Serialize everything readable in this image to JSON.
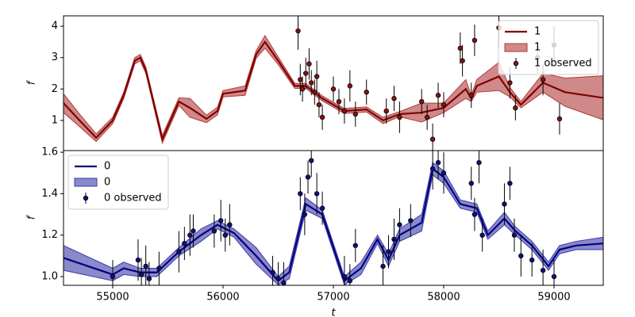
{
  "chart_data": [
    {
      "type": "line",
      "ylabel": "f",
      "legend": "upper right",
      "xlim": [
        54554,
        59446
      ],
      "ylim": [
        0.04,
        4.33
      ],
      "yticks": [
        1,
        2,
        3,
        4
      ],
      "series": [
        {
          "name": "1",
          "style": "line",
          "color": "#800000",
          "x": [
            54554,
            54700,
            54850,
            55000,
            55100,
            55200,
            55250,
            55300,
            55450,
            55600,
            55700,
            55850,
            55950,
            56000,
            56200,
            56300,
            56380,
            56500,
            56650,
            56750,
            56900,
            57100,
            57300,
            57450,
            57600,
            57800,
            58000,
            58200,
            58250,
            58300,
            58500,
            58600,
            58700,
            58900,
            59100,
            59446
          ],
          "values": [
            1.55,
            1.0,
            0.45,
            1.0,
            1.8,
            2.9,
            3.0,
            2.6,
            0.4,
            1.6,
            1.4,
            1.05,
            1.3,
            1.85,
            1.95,
            3.1,
            3.5,
            2.9,
            2.1,
            2.1,
            1.7,
            1.3,
            1.35,
            1.0,
            1.2,
            1.25,
            1.4,
            2.0,
            1.7,
            2.1,
            2.4,
            1.9,
            1.5,
            2.2,
            1.9,
            1.72
          ]
        },
        {
          "name": "1",
          "style": "band",
          "color": "#b03a3a",
          "x": [
            54554,
            54700,
            54850,
            55000,
            55100,
            55200,
            55250,
            55300,
            55450,
            55600,
            55700,
            55850,
            55950,
            56000,
            56200,
            56300,
            56380,
            56500,
            56650,
            56750,
            56900,
            57100,
            57300,
            57450,
            57600,
            57800,
            58000,
            58200,
            58250,
            58300,
            58500,
            58600,
            58700,
            58900,
            59100,
            59446
          ],
          "lower": [
            1.25,
            0.8,
            0.33,
            0.9,
            1.7,
            2.8,
            2.9,
            2.5,
            0.28,
            1.48,
            1.1,
            0.93,
            1.18,
            1.75,
            1.8,
            2.98,
            3.3,
            2.78,
            2.02,
            2.02,
            1.62,
            1.22,
            1.27,
            0.9,
            1.12,
            0.95,
            1.25,
            1.7,
            1.6,
            1.9,
            1.95,
            1.75,
            1.4,
            1.9,
            1.45,
            1.02
          ],
          "upper": [
            1.85,
            1.2,
            0.57,
            1.1,
            1.9,
            3.0,
            3.1,
            2.7,
            0.52,
            1.72,
            1.7,
            1.17,
            1.42,
            1.95,
            2.1,
            3.22,
            3.7,
            3.02,
            2.18,
            2.18,
            1.78,
            1.38,
            1.43,
            1.1,
            1.28,
            1.55,
            1.55,
            2.3,
            1.8,
            2.3,
            2.85,
            2.05,
            1.6,
            2.5,
            2.35,
            2.42
          ]
        },
        {
          "name": "1 observed",
          "style": "errorbar",
          "color": "#8b1010",
          "x": [
            56680,
            56700,
            56720,
            56750,
            56780,
            56800,
            56830,
            56850,
            56870,
            56900,
            57000,
            57050,
            57100,
            57150,
            57200,
            57300,
            57480,
            57550,
            57600,
            57800,
            57850,
            57900,
            57950,
            58000,
            58150,
            58170,
            58250,
            58280,
            58500,
            58600,
            58650,
            58850,
            58900,
            59000,
            59050
          ],
          "values": [
            3.85,
            2.3,
            2.0,
            2.5,
            2.8,
            2.2,
            1.9,
            2.4,
            1.5,
            1.1,
            2.0,
            1.6,
            1.3,
            2.1,
            1.2,
            1.9,
            1.3,
            1.7,
            1.1,
            1.6,
            1.1,
            0.4,
            1.8,
            1.5,
            3.3,
            2.9,
            1.8,
            3.55,
            3.95,
            2.2,
            1.4,
            3.0,
            2.3,
            3.4,
            1.05
          ],
          "errors": [
            0.6,
            0.5,
            0.4,
            0.5,
            0.5,
            0.4,
            0.4,
            0.5,
            0.4,
            0.4,
            0.4,
            0.4,
            0.4,
            0.5,
            0.4,
            0.4,
            0.4,
            0.4,
            0.5,
            0.4,
            0.4,
            0.5,
            0.4,
            0.4,
            0.5,
            0.5,
            0.4,
            0.5,
            0.6,
            0.5,
            0.4,
            0.5,
            0.5,
            0.6,
            0.5
          ]
        }
      ]
    },
    {
      "type": "line",
      "ylabel": "f",
      "xlabel": "t",
      "legend": "upper left",
      "xlim": [
        54554,
        59446
      ],
      "ylim": [
        0.958,
        1.608
      ],
      "xticks": [
        55000,
        56000,
        57000,
        58000,
        59000
      ],
      "yticks": [
        {
          "value": 1,
          "label": "1.0"
        },
        1.2,
        1.4,
        1.6
      ],
      "series": [
        {
          "name": "0",
          "style": "line",
          "color": "#000080",
          "x": [
            54554,
            55000,
            55100,
            55250,
            55400,
            55600,
            55800,
            55950,
            56100,
            56300,
            56500,
            56600,
            56750,
            56900,
            57100,
            57250,
            57400,
            57500,
            57600,
            57800,
            57900,
            58000,
            58150,
            58300,
            58400,
            58550,
            58650,
            58800,
            58950,
            59050,
            59200,
            59446
          ],
          "values": [
            1.09,
            1.01,
            1.04,
            1.02,
            1.02,
            1.12,
            1.2,
            1.25,
            1.21,
            1.1,
            0.98,
            1.02,
            1.35,
            1.3,
            0.98,
            1.04,
            1.18,
            1.08,
            1.2,
            1.26,
            1.52,
            1.48,
            1.35,
            1.33,
            1.2,
            1.28,
            1.22,
            1.15,
            1.05,
            1.13,
            1.15,
            1.16
          ]
        },
        {
          "name": "0",
          "style": "band",
          "color": "#3a3aa8",
          "x": [
            54554,
            55000,
            55100,
            55250,
            55400,
            55600,
            55800,
            55950,
            56100,
            56300,
            56500,
            56600,
            56750,
            56900,
            57100,
            57250,
            57400,
            57500,
            57600,
            57800,
            57900,
            58000,
            58150,
            58300,
            58400,
            58550,
            58650,
            58800,
            58950,
            59050,
            59200,
            59446
          ],
          "lower": [
            1.03,
            0.98,
            1.01,
            1.0,
            1.0,
            1.1,
            1.17,
            1.23,
            1.19,
            1.06,
            0.96,
            0.99,
            1.32,
            1.28,
            0.96,
            1.01,
            1.16,
            1.05,
            1.17,
            1.22,
            1.49,
            1.45,
            1.33,
            1.31,
            1.18,
            1.25,
            1.2,
            1.13,
            1.03,
            1.11,
            1.13,
            1.13
          ],
          "upper": [
            1.15,
            1.04,
            1.07,
            1.04,
            1.04,
            1.14,
            1.23,
            1.27,
            1.23,
            1.14,
            1.0,
            1.05,
            1.38,
            1.32,
            1.0,
            1.07,
            1.2,
            1.11,
            1.23,
            1.3,
            1.55,
            1.51,
            1.37,
            1.35,
            1.22,
            1.31,
            1.24,
            1.17,
            1.07,
            1.15,
            1.17,
            1.19
          ]
        },
        {
          "name": "0 observed",
          "style": "errorbar",
          "color": "#101080",
          "x": [
            55000,
            55230,
            55260,
            55300,
            55330,
            55420,
            55600,
            55650,
            55700,
            55730,
            55920,
            55980,
            56020,
            56060,
            56450,
            56500,
            56550,
            56700,
            56740,
            56770,
            56800,
            56850,
            56900,
            57100,
            57150,
            57200,
            57450,
            57500,
            57550,
            57600,
            57700,
            57900,
            57950,
            58000,
            58250,
            58280,
            58320,
            58350,
            58550,
            58600,
            58640,
            58700,
            58800,
            58900,
            59000
          ],
          "values": [
            1.0,
            1.08,
            1.01,
            1.05,
            0.99,
            1.04,
            1.12,
            1.16,
            1.2,
            1.22,
            1.22,
            1.27,
            1.2,
            1.25,
            1.02,
            0.99,
            0.97,
            1.4,
            1.3,
            1.48,
            1.56,
            1.4,
            1.33,
            1.0,
            0.98,
            1.15,
            1.05,
            1.12,
            1.18,
            1.25,
            1.27,
            1.52,
            1.55,
            1.5,
            1.45,
            1.3,
            1.55,
            1.2,
            1.35,
            1.45,
            1.2,
            1.1,
            1.08,
            1.03,
            1.0
          ],
          "errors": [
            0.08,
            0.1,
            0.08,
            0.1,
            0.08,
            0.08,
            0.1,
            0.08,
            0.1,
            0.08,
            0.08,
            0.1,
            0.08,
            0.1,
            0.08,
            0.08,
            0.1,
            0.08,
            0.1,
            0.08,
            0.08,
            0.1,
            0.08,
            0.1,
            0.08,
            0.08,
            0.1,
            0.08,
            0.1,
            0.08,
            0.08,
            0.1,
            0.08,
            0.1,
            0.08,
            0.08,
            0.1,
            0.08,
            0.1,
            0.08,
            0.08,
            0.1,
            0.08,
            0.1,
            0.08
          ]
        }
      ]
    }
  ]
}
